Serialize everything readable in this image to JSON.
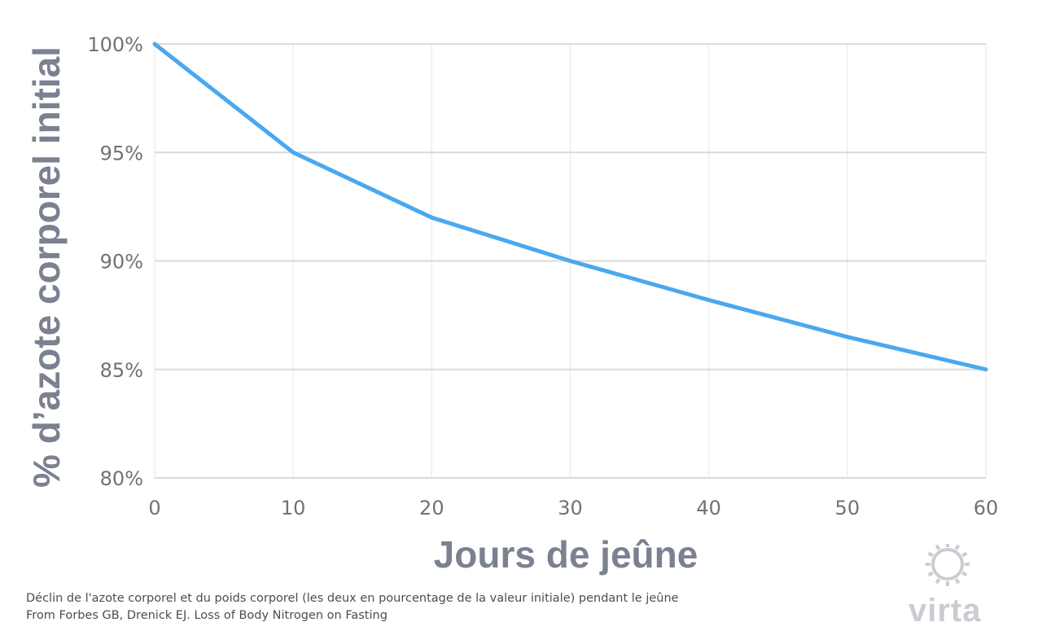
{
  "chart_data": {
    "type": "line",
    "title": "",
    "xlabel": "Jours de jeûne",
    "ylabel": "% d’azote corporel initial",
    "x": [
      0,
      10,
      20,
      30,
      40,
      50,
      60
    ],
    "series": [
      {
        "values": [
          100,
          95,
          92,
          90,
          88.2,
          86.5,
          85
        ]
      }
    ],
    "xlim": [
      0,
      60
    ],
    "ylim": [
      80,
      100
    ],
    "xticks": [
      "0",
      "10",
      "20",
      "30",
      "40",
      "50",
      "60"
    ],
    "yticks": [
      "80%",
      "85%",
      "90%",
      "95%",
      "100%"
    ],
    "ytick_values": [
      80,
      85,
      90,
      95,
      100
    ],
    "grid": true,
    "line_color": "#4aa8ee",
    "grid_color": "#d9dadc"
  },
  "caption": {
    "line1": "Déclin de l'azote corporel et du poids corporel (les deux en pourcentage de la valeur initiale) pendant le jeûne",
    "line2": "From Forbes GB, Drenick EJ. Loss of Body Nitrogen on Fasting"
  },
  "logo": {
    "text": "virta",
    "icon": "sun-icon",
    "color": "#c9ccd1"
  }
}
